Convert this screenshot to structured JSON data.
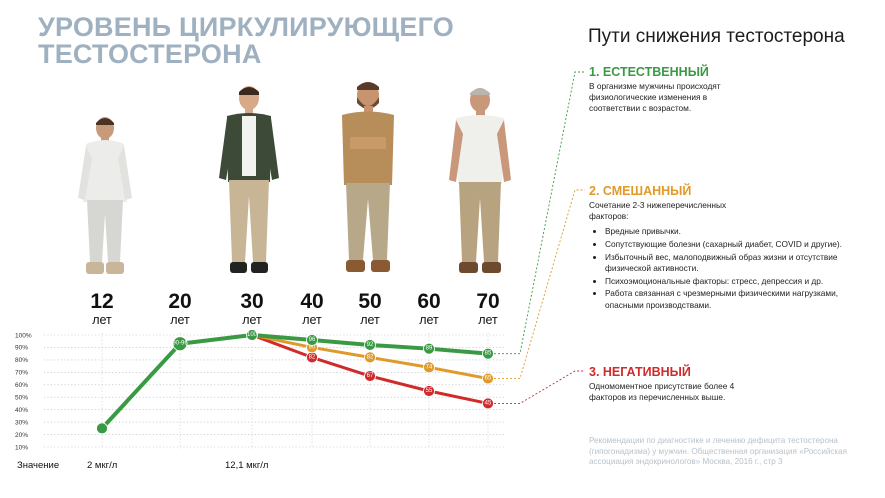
{
  "title": {
    "line1": "УРОВЕНЬ ЦИРКУЛИРУЮЩЕГО",
    "line2": "ТЕСТОСТЕРОНА"
  },
  "paths": {
    "heading": "Пути снижения тестостерона",
    "natural": {
      "label": "1. ЕСТЕСТВЕННЫЙ",
      "text": "В организме мужчины происходят физиологические изменения в соответствии с возрастом.",
      "color": "#3a9a44"
    },
    "mixed": {
      "label": "2. СМЕШАННЫЙ",
      "text": "Сочетание 2-3 нижеперечисленных факторов:",
      "items": [
        "Вредные привычки.",
        "Сопутствующие болезни (сахарный диабет, COVID и другие).",
        "Избыточный вес, малоподвижный образ жизни и отсутствие физической активности.",
        "Психоэмоциональные факторы: стресс, депрессия и др.",
        "Работа связанная с чрезмерными физическими нагрузками, опасными производствами."
      ],
      "color": "#e09a2a"
    },
    "negative": {
      "label": "3. НЕГАТИВНЫЙ",
      "text": "Одномоментное присутствие более 4 факторов из перечисленных выше.",
      "color": "#d02a2a"
    }
  },
  "source": "Рекомендации по диагностике и лечению дефицита тестостерона (гипогонадизма) у мужчин. Общественная организация «Российская ассоциация эндокринологов» Москва, 2016 г., стр 3",
  "ages": [
    {
      "num": "12",
      "unit": "лет"
    },
    {
      "num": "20",
      "unit": "лет"
    },
    {
      "num": "30",
      "unit": "лет"
    },
    {
      "num": "40",
      "unit": "лет"
    },
    {
      "num": "50",
      "unit": "лет"
    },
    {
      "num": "60",
      "unit": "лет"
    },
    {
      "num": "70",
      "unit": "лет"
    }
  ],
  "values_row": {
    "label": "Значение",
    "v12": "2 мкг/л",
    "v30": "12,1 мкг/л"
  },
  "chart_data": {
    "type": "line",
    "x": [
      12,
      20,
      30,
      40,
      50,
      60,
      70
    ],
    "ylim": [
      10,
      100
    ],
    "yticks": [
      "10%",
      "20%",
      "30%",
      "40%",
      "50%",
      "60%",
      "70%",
      "80%",
      "90%",
      "100%"
    ],
    "series": [
      {
        "name": "1. ЕСТЕСТВЕННЫЙ",
        "color": "#3a9a44",
        "values": [
          25,
          93,
          100,
          96,
          92,
          89,
          85
        ],
        "labels": [
          "",
          "90-96",
          "100",
          "96",
          "92",
          "89",
          "85"
        ]
      },
      {
        "name": "2. СМЕШАННЫЙ",
        "color": "#e09a2a",
        "values": [
          25,
          93,
          100,
          90,
          82,
          74,
          65
        ],
        "labels": [
          "",
          "",
          "",
          "90",
          "82",
          "74",
          "65"
        ]
      },
      {
        "name": "3. НЕГАТИВНЫЙ",
        "color": "#d02a2a",
        "values": [
          25,
          93,
          100,
          82,
          67,
          55,
          45
        ],
        "labels": [
          "",
          "",
          "",
          "82",
          "67",
          "55",
          "45"
        ]
      }
    ]
  }
}
